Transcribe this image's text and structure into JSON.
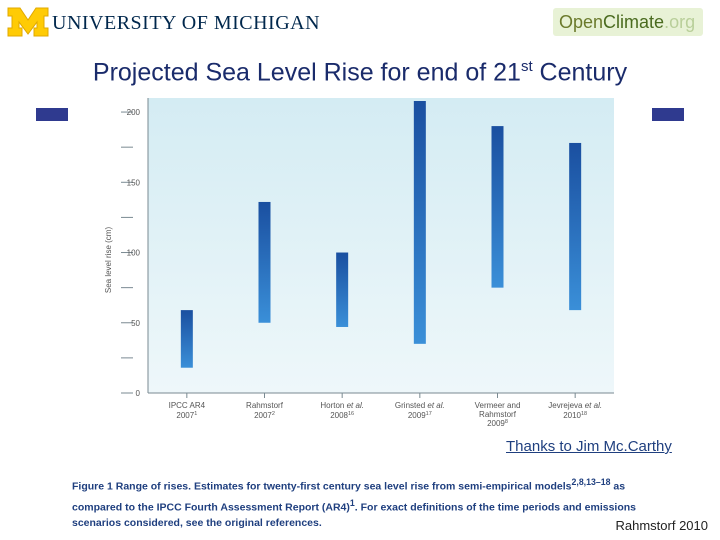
{
  "header": {
    "university_logo": "UNIVERSITY OF MICHIGAN",
    "openclimate_open": "Open",
    "openclimate_climate": "Climate",
    "openclimate_org": ".org"
  },
  "title": {
    "main": "Projected Sea Level Rise for end of 21",
    "sup": "st",
    "tail": " Century"
  },
  "chart_data": {
    "type": "bar",
    "subtype": "floating-range",
    "ylabel": "Sea level rise (cm)",
    "ylim": [
      0,
      210
    ],
    "yticks": [
      0,
      50,
      100,
      150,
      200
    ],
    "categories": [
      {
        "name": "IPCC AR4",
        "year": "2007",
        "ref": "1",
        "italic_part": ""
      },
      {
        "name": "Rahmstorf",
        "year": "2007",
        "ref": "2",
        "italic_part": ""
      },
      {
        "name": "Horton",
        "year": "2008",
        "ref": "16",
        "italic_part": "et al."
      },
      {
        "name": "Grinsted",
        "year": "2009",
        "ref": "17",
        "italic_part": "et al."
      },
      {
        "name": "Vermeer and Rahmstorf",
        "year": "2009",
        "ref": "8",
        "italic_part": ""
      },
      {
        "name": "Jevrejeva",
        "year": "2010",
        "ref": "18",
        "italic_part": "et al."
      }
    ],
    "ranges": [
      {
        "low": 18,
        "high": 59
      },
      {
        "low": 50,
        "high": 136
      },
      {
        "low": 47,
        "high": 100
      },
      {
        "low": 35,
        "high": 215
      },
      {
        "low": 75,
        "high": 190
      },
      {
        "low": 59,
        "high": 178
      }
    ]
  },
  "thanks_link": "Thanks to Jim Mc.Carthy",
  "caption": {
    "label": "Figure 1",
    "text": " Range of rises. Estimates for twenty-first century sea level rise from semi-empirical models",
    "refs": "2,8,13–18",
    "text2": " as compared to the IPCC Fourth Assessment Report (AR4)",
    "ref2": "1",
    "text3": ". For exact definitions of the time periods and emissions scenarios considered, see the original references."
  },
  "source": "Rahmstorf 2010",
  "colors": {
    "bar_top": "#1a4fa0",
    "bar_bottom": "#3a8fd8",
    "plot_bg_top": "#d4ecf3",
    "plot_bg_bottom": "#eef7fa",
    "title": "#1a2b6b",
    "accent": "#2f3a8f"
  }
}
